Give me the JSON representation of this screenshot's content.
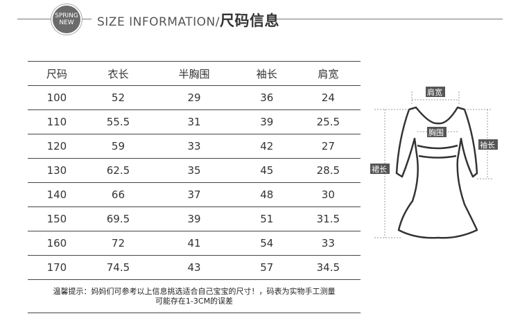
{
  "header": {
    "badge_line1": "SPRING",
    "badge_line2": "NEW",
    "title_en": "SIZE INFORMATION/",
    "title_cn": "尺码信息"
  },
  "table": {
    "columns": [
      "尺码",
      "衣长",
      "半胸围",
      "袖长",
      "肩宽"
    ],
    "rows": [
      [
        "100",
        "52",
        "29",
        "36",
        "24"
      ],
      [
        "110",
        "55.5",
        "31",
        "39",
        "25.5"
      ],
      [
        "120",
        "59",
        "33",
        "42",
        "27"
      ],
      [
        "130",
        "62.5",
        "35",
        "45",
        "28.5"
      ],
      [
        "140",
        "66",
        "37",
        "48",
        "30"
      ],
      [
        "150",
        "69.5",
        "39",
        "51",
        "31.5"
      ],
      [
        "160",
        "72",
        "41",
        "54",
        "33"
      ],
      [
        "170",
        "74.5",
        "43",
        "57",
        "34.5"
      ]
    ]
  },
  "note": {
    "line1": "温馨提示：妈妈们可参考以上信息挑选适合自己宝宝的尺寸！，码表为实物手工测量",
    "line2": "可能存在1-3CM的误差"
  },
  "diagram": {
    "shoulder": "肩宽",
    "chest": "胸围",
    "sleeve": "袖长",
    "length": "裙长"
  }
}
